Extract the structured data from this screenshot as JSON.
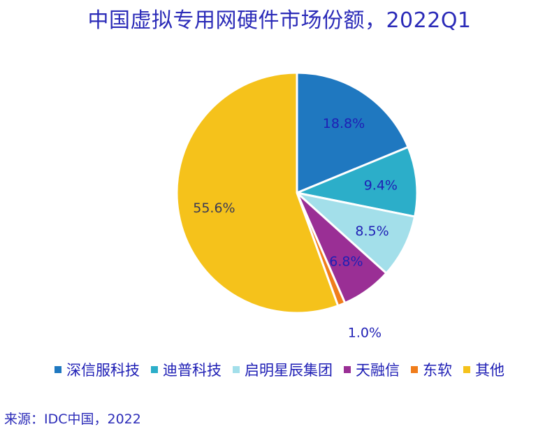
{
  "title": "中国虚拟专用网硬件市场份额，2022Q1",
  "source": "来源：IDC中国，2022",
  "chart_data": {
    "type": "pie",
    "title": "中国虚拟专用网硬件市场份额，2022Q1",
    "start_angle_deg": 0,
    "direction": "clockwise",
    "legend_position": "bottom",
    "slices": [
      {
        "name": "深信服科技",
        "value": 18.8,
        "label": "18.8%",
        "color": "#1f78c0"
      },
      {
        "name": "迪普科技",
        "value": 9.4,
        "label": "9.4%",
        "color": "#2caec9"
      },
      {
        "name": "启明星辰集团",
        "value": 8.5,
        "label": "8.5%",
        "color": "#a3dfea"
      },
      {
        "name": "天融信",
        "value": 6.8,
        "label": "6.8%",
        "color": "#9a2f95"
      },
      {
        "name": "东软",
        "value": 1.0,
        "label": "1.0%",
        "color": "#f07d1b"
      },
      {
        "name": "其他",
        "value": 55.6,
        "label": "55.6%",
        "color": "#f5c21b"
      }
    ],
    "label_color": "#1f1fb5"
  }
}
